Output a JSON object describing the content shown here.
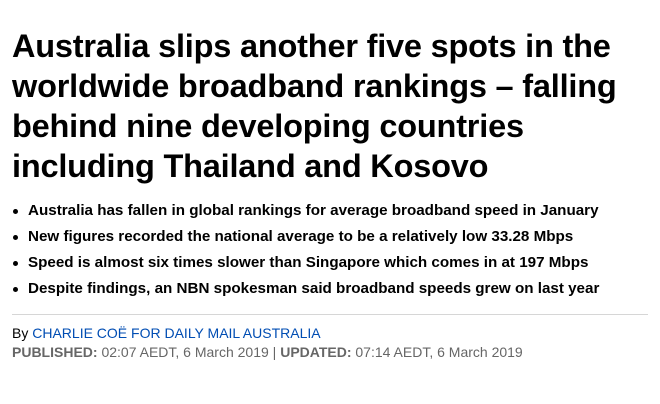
{
  "headline": "Australia slips another five spots in the worldwide broadband rankings – falling behind nine developing countries including Thailand and Kosovo",
  "bullets": [
    "Australia has fallen in global rankings for average broadband speed in January",
    "New figures recorded the national average to be a relatively low 33.28 Mbps",
    "Speed is almost six times slower than Singapore which comes in at 197 Mbps",
    "Despite findings, an NBN spokesman said broadband speeds grew on last year"
  ],
  "byline": {
    "prefix": "By",
    "author": "CHARLIE COË FOR DAILY MAIL AUSTRALIA"
  },
  "dates": {
    "published_label": "PUBLISHED:",
    "published_value": "02:07 AEDT, 6 March 2019",
    "separator": "|",
    "updated_label": "UPDATED:",
    "updated_value": "07:14 AEDT, 6 March 2019"
  },
  "colors": {
    "author_link": "#004db3",
    "date_text": "#666666",
    "divider": "#d6d6d6"
  }
}
